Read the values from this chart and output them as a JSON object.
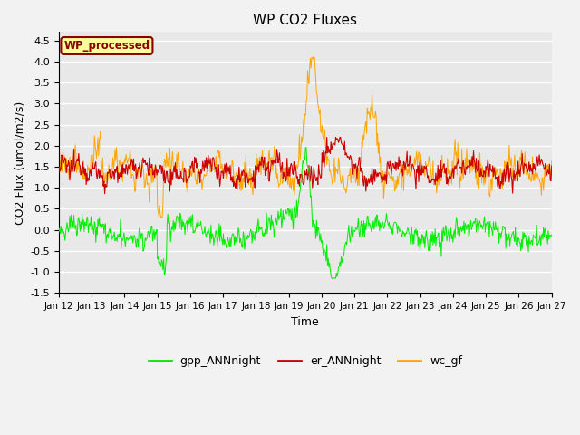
{
  "title": "WP CO2 Fluxes",
  "xlabel": "Time",
  "ylabel": "CO2 Flux (umol/m2/s)",
  "ylim": [
    -1.5,
    4.7
  ],
  "yticks": [
    -1.5,
    -1.0,
    -0.5,
    0.0,
    0.5,
    1.0,
    1.5,
    2.0,
    2.5,
    3.0,
    3.5,
    4.0,
    4.5
  ],
  "n_points": 720,
  "colors": {
    "gpp": "#00ee00",
    "er": "#cc0000",
    "wc": "#ffa500"
  },
  "fig_bg_color": "#f2f2f2",
  "plot_bg_color": "#e8e8e8",
  "legend_label": "WP_processed",
  "legend_label_color": "#8b0000",
  "legend_label_bg": "#ffff99",
  "series_labels": [
    "gpp_ANNnight",
    "er_ANNnight",
    "wc_gf"
  ],
  "grid_color": "#ffffff",
  "xtick_labels": [
    "Jan 12",
    "Jan 13",
    "Jan 14",
    "Jan 15",
    "Jan 16",
    "Jan 17",
    "Jan 18",
    "Jan 19",
    "Jan 20",
    "Jan 21",
    "Jan 22",
    "Jan 23",
    "Jan 24",
    "Jan 25",
    "Jan 26",
    "Jan 27"
  ]
}
